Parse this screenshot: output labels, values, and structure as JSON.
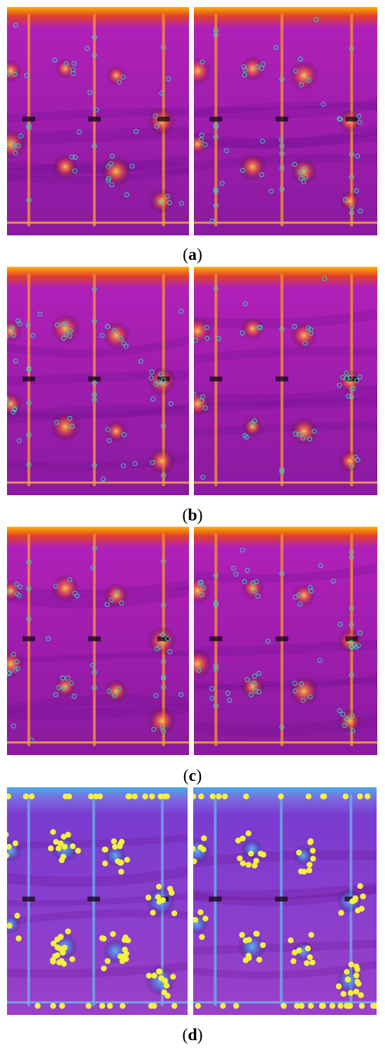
{
  "figure": {
    "panels": [
      {
        "id": "a",
        "label": "a",
        "style": "thermal",
        "markers": "circles-clustered"
      },
      {
        "id": "b",
        "label": "b",
        "style": "thermal",
        "markers": "circles-edges"
      },
      {
        "id": "c",
        "label": "c",
        "style": "thermal",
        "markers": "circles-sparse"
      },
      {
        "id": "d",
        "label": "d",
        "style": "thermal-blue",
        "markers": "yellow-dots"
      }
    ],
    "colors": {
      "thermal_base": "#b020b8",
      "thermal_dark": "#8a1aa0",
      "thermal_hot": "#ffb000",
      "blue_base": "#7a3cd0",
      "marker_ring": "#3cc8c0",
      "marker_yellow": "#f4f040"
    }
  }
}
